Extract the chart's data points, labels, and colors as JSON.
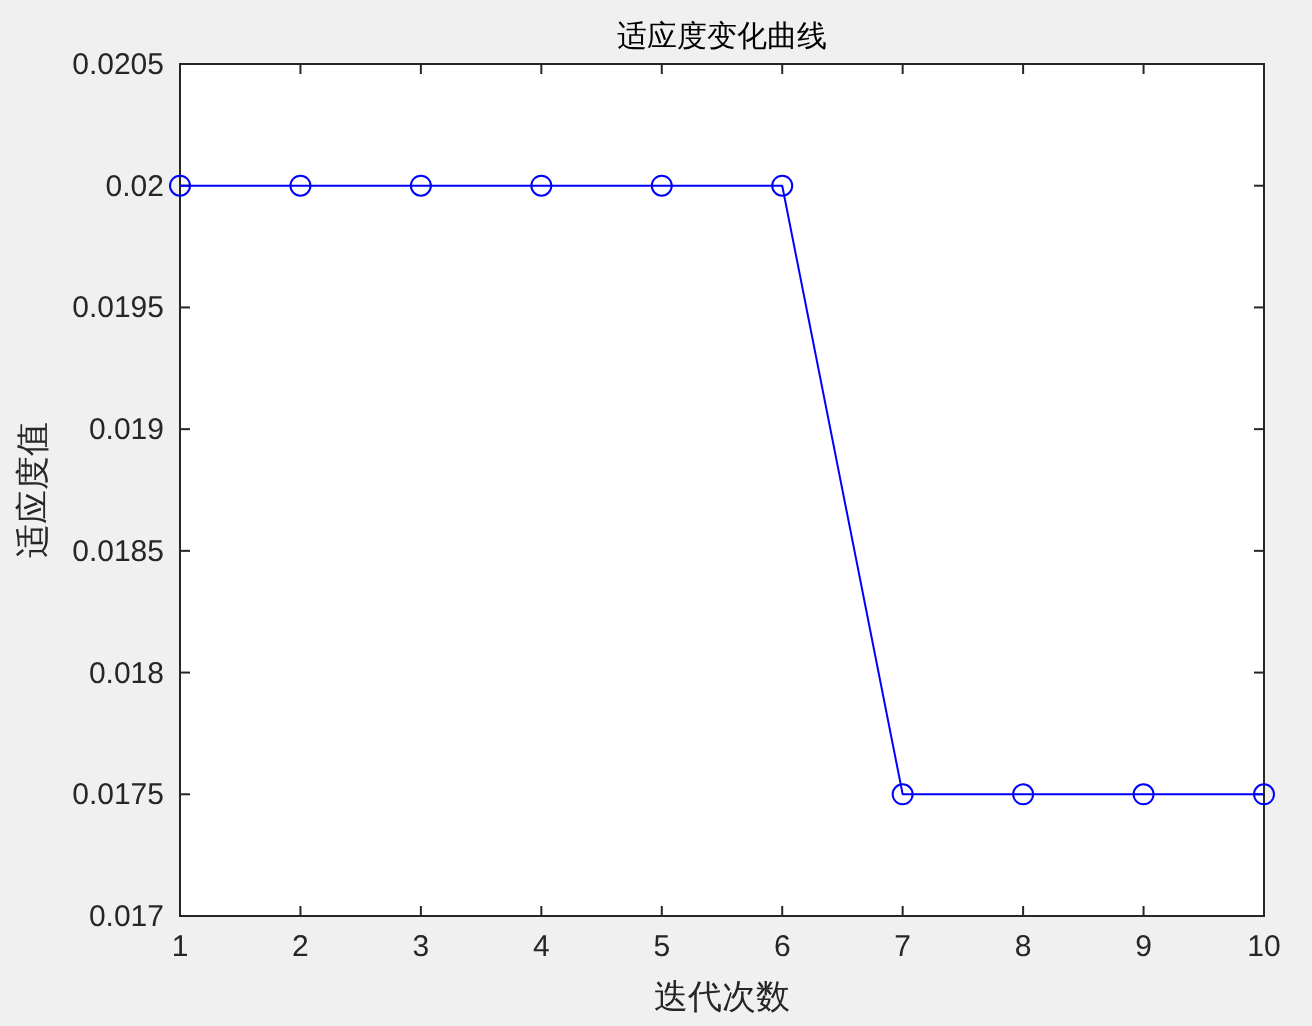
{
  "chart_data": {
    "type": "line",
    "title": "适应度变化曲线",
    "xlabel": "迭代次数",
    "ylabel": "适应度值",
    "x": [
      1,
      2,
      3,
      4,
      5,
      6,
      7,
      8,
      9,
      10
    ],
    "series": [
      {
        "color": "#0000ff",
        "values": [
          0.02,
          0.02,
          0.02,
          0.02,
          0.02,
          0.02,
          0.0175,
          0.0175,
          0.0175,
          0.0175
        ]
      }
    ],
    "xlim": [
      1,
      10
    ],
    "ylim": [
      0.017,
      0.0205
    ],
    "xticks": [
      1,
      2,
      3,
      4,
      5,
      6,
      7,
      8,
      9,
      10
    ],
    "yticks": [
      0.017,
      0.0175,
      0.018,
      0.0185,
      0.019,
      0.0195,
      0.02,
      0.0205
    ],
    "marker": "circle",
    "line_style": "solid"
  }
}
